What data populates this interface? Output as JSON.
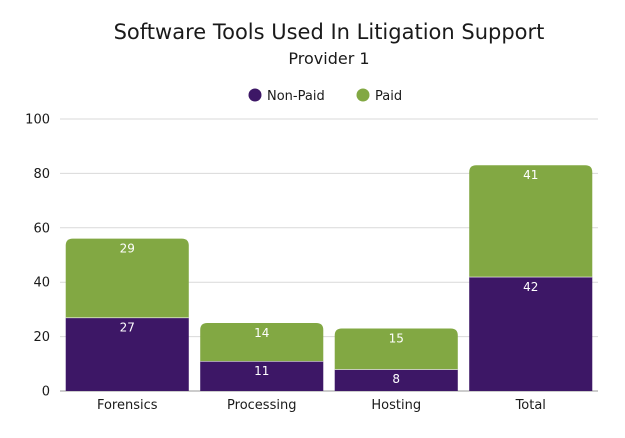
{
  "chart_data": {
    "type": "bar",
    "stacked": true,
    "title": "Software Tools Used In Litigation Support",
    "subtitle": "Provider 1",
    "categories": [
      "Forensics",
      "Processing",
      "Hosting",
      "Total"
    ],
    "series": [
      {
        "name": "Non-Paid",
        "color": "#3d1766",
        "values": [
          27,
          11,
          8,
          42
        ]
      },
      {
        "name": "Paid",
        "color": "#82a843",
        "values": [
          29,
          14,
          15,
          41
        ]
      }
    ],
    "ylim": [
      0,
      100
    ],
    "yticks": [
      0,
      20,
      40,
      60,
      80,
      100
    ],
    "grid": true,
    "legend_position": "top-center"
  }
}
